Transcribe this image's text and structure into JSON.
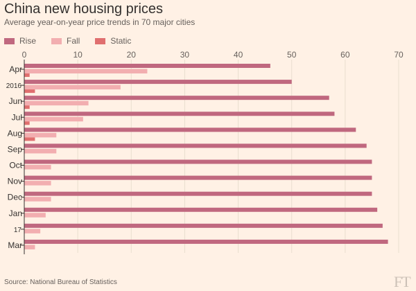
{
  "title": "China new housing prices",
  "subtitle": "Average year-on-year price trends in 70 major cities",
  "source": "Source: National Bureau of Statistics",
  "logo": "FT",
  "colors": {
    "background": "#fff1e5",
    "rise": "#c0687f",
    "fall": "#f2aeb0",
    "static": "#e06f6f",
    "axis": "#33302e",
    "grid": "#e9decf"
  },
  "chart_data": {
    "type": "bar",
    "orientation": "horizontal",
    "categories": [
      "Apr",
      "2016",
      "Jun",
      "Jul",
      "Aug",
      "Sep",
      "Oct",
      "Nov",
      "Dec",
      "Jan",
      "17",
      "Mar"
    ],
    "series": [
      {
        "name": "Rise",
        "values": [
          46,
          50,
          57,
          58,
          62,
          64,
          65,
          65,
          65,
          66,
          67,
          68
        ]
      },
      {
        "name": "Fall",
        "values": [
          23,
          18,
          12,
          11,
          6,
          6,
          5,
          5,
          5,
          4,
          3,
          2
        ]
      },
      {
        "name": "Static",
        "values": [
          1,
          2,
          1,
          1,
          2,
          0,
          0,
          0,
          0,
          0,
          0,
          0
        ]
      }
    ],
    "xlim": [
      0,
      70
    ],
    "xticks": [
      0,
      10,
      20,
      30,
      40,
      50,
      60,
      70
    ],
    "grid": true,
    "legend": "top-left"
  }
}
